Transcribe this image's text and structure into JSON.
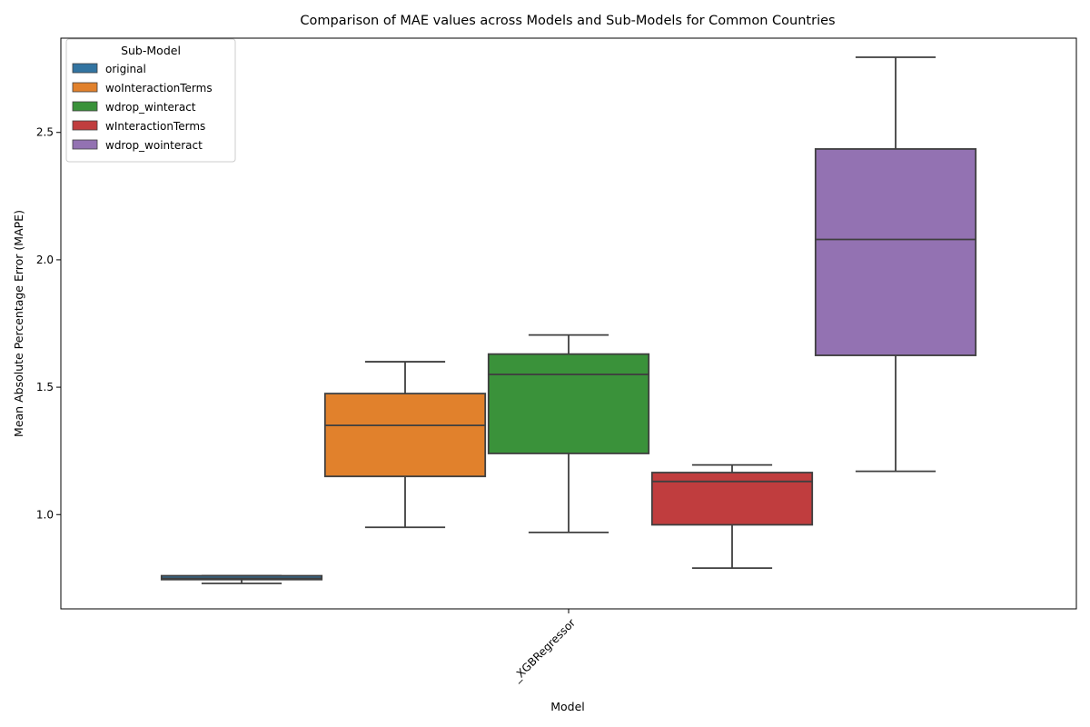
{
  "chart_data": {
    "type": "box",
    "title": "Comparison of MAE values across Models and Sub-Models for Common Countries",
    "xlabel": "Model",
    "ylabel": "Mean Absolute Percentage Error (MAPE)",
    "categories": [
      "_XGBRegressor"
    ],
    "ylim": [
      0.63,
      2.87
    ],
    "yticks": [
      1.0,
      1.5,
      2.0,
      2.5
    ],
    "grid": false,
    "legend": {
      "title": "Sub-Model",
      "placement": "top-left"
    },
    "series": [
      {
        "name": "original",
        "color": "#3274a1",
        "stats": {
          "whisker_low": 0.73,
          "q1": 0.745,
          "median": 0.75,
          "q3": 0.76,
          "whisker_high": 0.76
        }
      },
      {
        "name": "woInteractionTerms",
        "color": "#e1812c",
        "stats": {
          "whisker_low": 0.95,
          "q1": 1.15,
          "median": 1.35,
          "q3": 1.475,
          "whisker_high": 1.6
        }
      },
      {
        "name": "wdrop_winteract",
        "color": "#3a923a",
        "stats": {
          "whisker_low": 0.93,
          "q1": 1.24,
          "median": 1.55,
          "q3": 1.63,
          "whisker_high": 1.705
        }
      },
      {
        "name": "wInteractionTerms",
        "color": "#c03d3e",
        "stats": {
          "whisker_low": 0.79,
          "q1": 0.96,
          "median": 1.13,
          "q3": 1.165,
          "whisker_high": 1.195
        }
      },
      {
        "name": "wdrop_wointeract",
        "color": "#9372b2",
        "stats": {
          "whisker_low": 1.17,
          "q1": 1.625,
          "median": 2.08,
          "q3": 2.435,
          "whisker_high": 2.795
        }
      }
    ]
  }
}
